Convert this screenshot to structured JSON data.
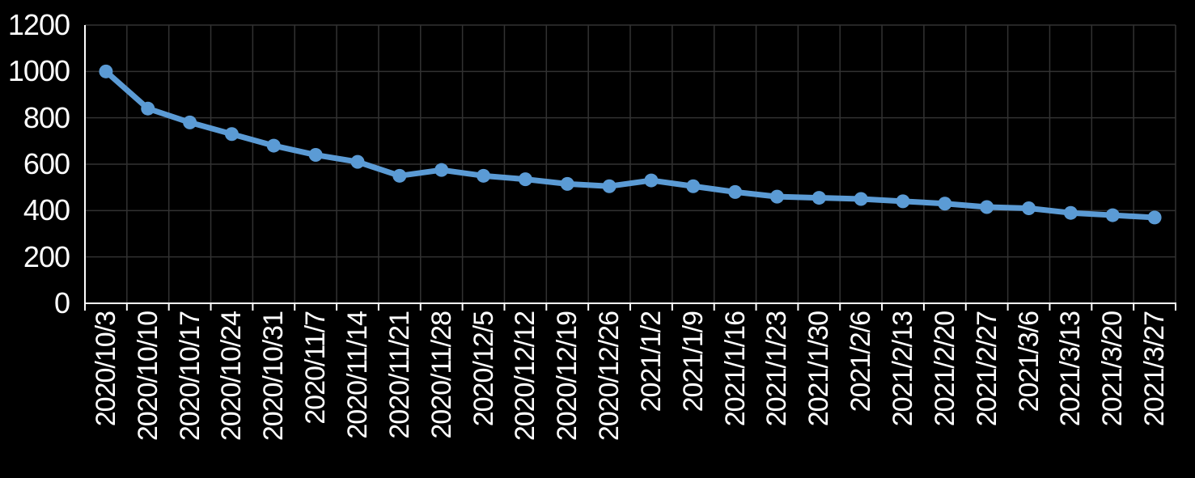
{
  "chart_data": {
    "type": "line",
    "title": "",
    "xlabel": "",
    "ylabel": "",
    "categories": [
      "2020/10/3",
      "2020/10/10",
      "2020/10/17",
      "2020/10/24",
      "2020/10/31",
      "2020/11/7",
      "2020/11/14",
      "2020/11/21",
      "2020/11/28",
      "2020/12/5",
      "2020/12/12",
      "2020/12/19",
      "2020/12/26",
      "2021/1/2",
      "2021/1/9",
      "2021/1/16",
      "2021/1/23",
      "2021/1/30",
      "2021/2/6",
      "2021/2/13",
      "2021/2/20",
      "2021/2/27",
      "2021/3/6",
      "2021/3/13",
      "2021/3/20",
      "2021/3/27"
    ],
    "values": [
      1000,
      840,
      780,
      730,
      680,
      640,
      610,
      550,
      575,
      550,
      535,
      515,
      505,
      530,
      505,
      480,
      460,
      455,
      450,
      440,
      430,
      415,
      410,
      390,
      380,
      370
    ],
    "ylim": [
      0,
      1200
    ],
    "y_ticks": [
      0,
      200,
      400,
      600,
      800,
      1000,
      1200
    ],
    "grid": true,
    "legend": "none",
    "marker": "circle",
    "colors": {
      "series": "#5B9BD5",
      "background": "#000000",
      "gridline": "#323232",
      "axis": "#FFFFFF",
      "text": "#FFFFFF"
    }
  }
}
